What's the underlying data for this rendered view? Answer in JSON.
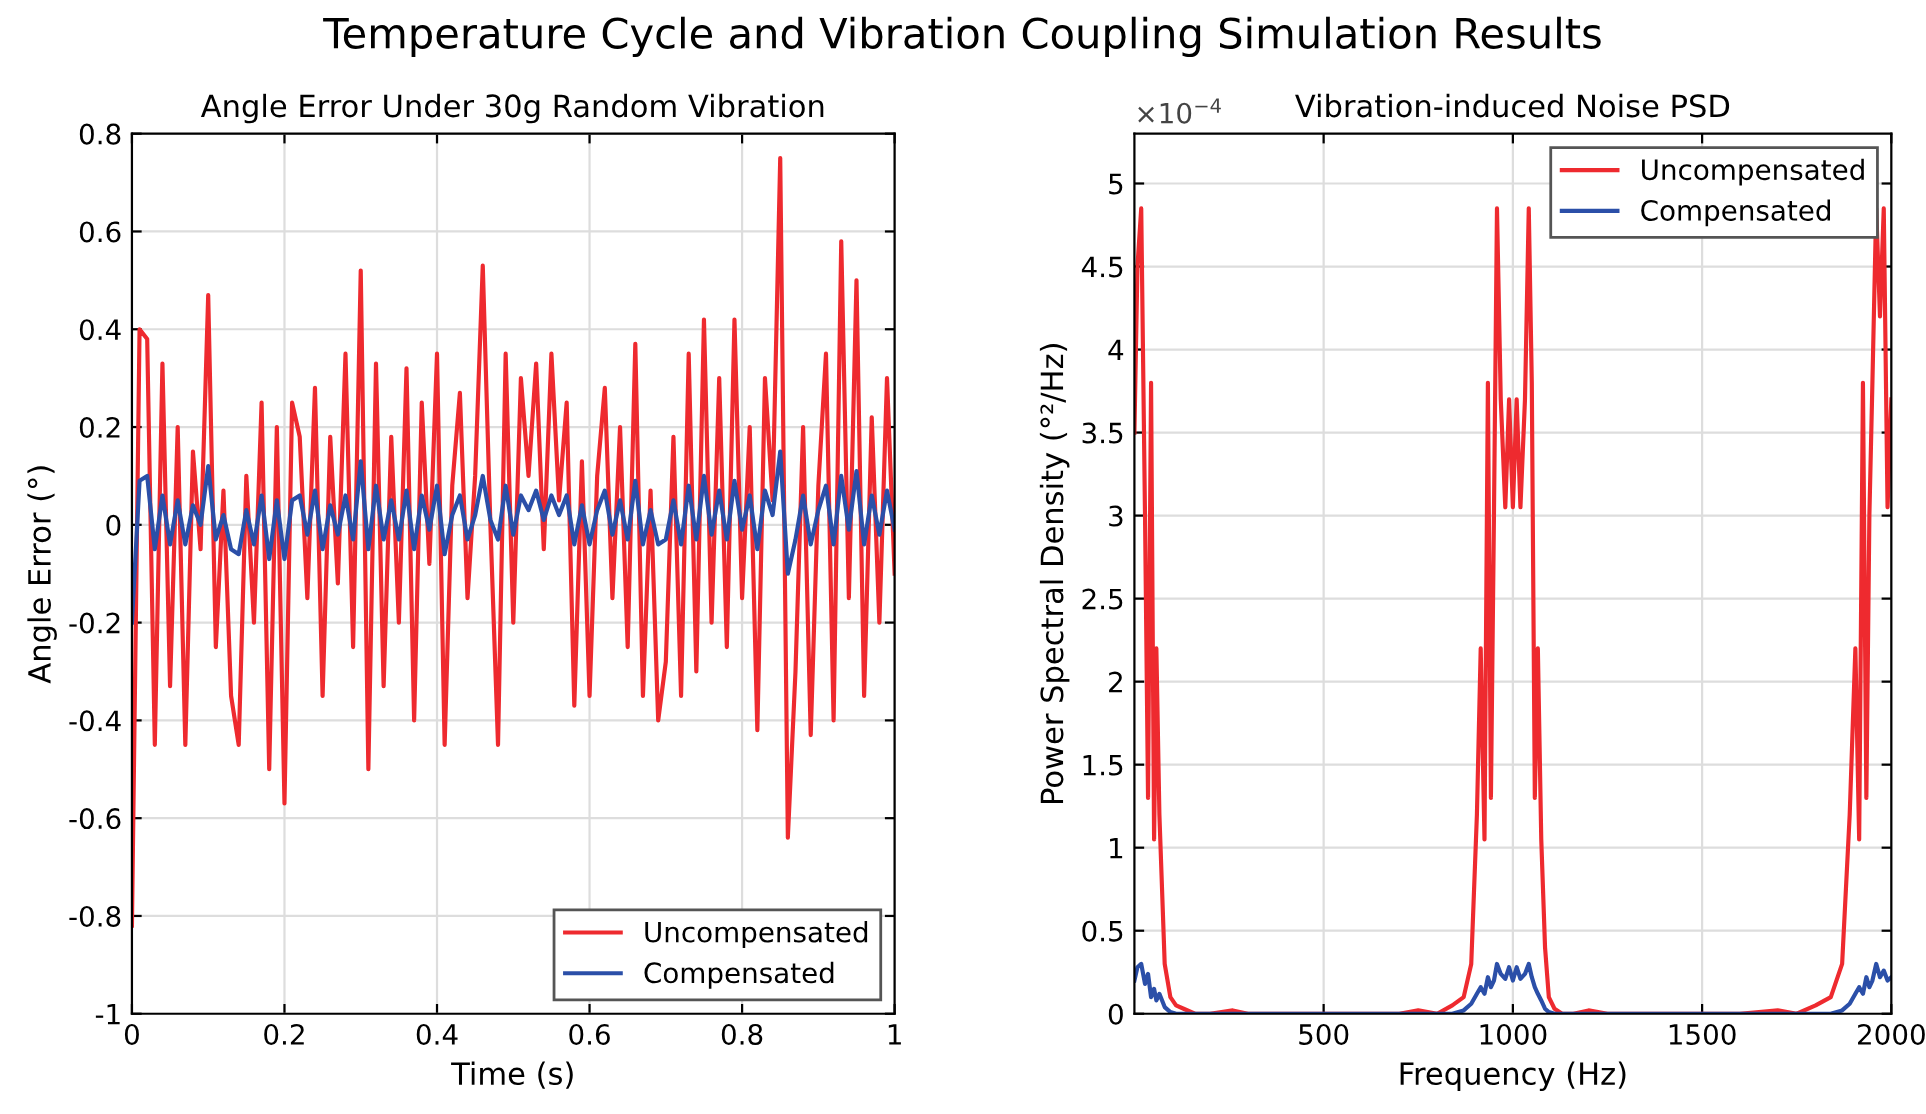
{
  "chart_data": [
    {
      "type": "line",
      "title": "Angle Error Under 30g Random Vibration",
      "annotations": [
        "Temperature Cycle and Vibration Coupling Simulation Results"
      ],
      "xlabel": "Time (s)",
      "ylabel": "Angle Error (°)",
      "xlim": [
        0,
        1
      ],
      "xticks": [
        0,
        0.2,
        0.4,
        0.6,
        0.8,
        1
      ],
      "ylim": [
        -1,
        0.8
      ],
      "yticks": [
        -1,
        -0.8,
        -0.6,
        -0.4,
        -0.2,
        0,
        0.2,
        0.4,
        0.6,
        0.8
      ],
      "grid": true,
      "legend": "bottom right",
      "x": [
        0,
        0.01,
        0.02,
        0.03,
        0.04,
        0.05,
        0.06,
        0.07,
        0.08,
        0.09,
        0.1,
        0.11,
        0.12,
        0.13,
        0.14,
        0.15,
        0.16,
        0.17,
        0.18,
        0.19,
        0.2,
        0.21,
        0.22,
        0.23,
        0.24,
        0.25,
        0.26,
        0.27,
        0.28,
        0.29,
        0.3,
        0.31,
        0.32,
        0.33,
        0.34,
        0.35,
        0.36,
        0.37,
        0.38,
        0.39,
        0.4,
        0.41,
        0.42,
        0.43,
        0.44,
        0.45,
        0.46,
        0.47,
        0.48,
        0.49,
        0.5,
        0.51,
        0.52,
        0.53,
        0.54,
        0.55,
        0.56,
        0.57,
        0.58,
        0.59,
        0.6,
        0.61,
        0.62,
        0.63,
        0.64,
        0.65,
        0.66,
        0.67,
        0.68,
        0.69,
        0.7,
        0.71,
        0.72,
        0.73,
        0.74,
        0.75,
        0.76,
        0.77,
        0.78,
        0.79,
        0.8,
        0.81,
        0.82,
        0.83,
        0.84,
        0.85,
        0.86,
        0.87,
        0.88,
        0.89,
        0.9,
        0.91,
        0.92,
        0.93,
        0.94,
        0.95,
        0.96,
        0.97,
        0.98,
        0.99,
        1
      ],
      "series": [
        {
          "name": "Uncompensated",
          "color": "#ee2a2f",
          "values": [
            -0.82,
            0.4,
            0.38,
            -0.45,
            0.33,
            -0.33,
            0.2,
            -0.45,
            0.15,
            -0.05,
            0.47,
            -0.25,
            0.07,
            -0.35,
            -0.45,
            0.1,
            -0.2,
            0.25,
            -0.5,
            0.2,
            -0.57,
            0.25,
            0.18,
            -0.15,
            0.28,
            -0.35,
            0.18,
            -0.12,
            0.35,
            -0.25,
            0.52,
            -0.5,
            0.33,
            -0.33,
            0.18,
            -0.2,
            0.32,
            -0.4,
            0.25,
            -0.08,
            0.35,
            -0.45,
            0.08,
            0.27,
            -0.15,
            0.1,
            0.53,
            0,
            -0.45,
            0.35,
            -0.2,
            0.3,
            0.1,
            0.33,
            -0.05,
            0.35,
            0.05,
            0.25,
            -0.37,
            0.13,
            -0.35,
            0.1,
            0.28,
            -0.15,
            0.2,
            -0.25,
            0.37,
            -0.35,
            0.07,
            -0.4,
            -0.28,
            0.18,
            -0.35,
            0.35,
            -0.3,
            0.42,
            -0.2,
            0.3,
            -0.25,
            0.42,
            -0.15,
            0.2,
            -0.42,
            0.3,
            0.05,
            0.75,
            -0.64,
            -0.3,
            0.2,
            -0.43,
            0.08,
            0.35,
            -0.4,
            0.58,
            -0.15,
            0.5,
            -0.35,
            0.22,
            -0.2,
            0.3,
            -0.1
          ]
        },
        {
          "name": "Compensated",
          "color": "#2b4fa8",
          "values": [
            -0.2,
            0.09,
            0.1,
            -0.05,
            0.06,
            -0.04,
            0.05,
            -0.04,
            0.04,
            0,
            0.12,
            -0.03,
            0.02,
            -0.05,
            -0.06,
            0.03,
            -0.04,
            0.06,
            -0.07,
            0.05,
            -0.07,
            0.05,
            0.06,
            -0.02,
            0.07,
            -0.05,
            0.04,
            -0.02,
            0.06,
            -0.03,
            0.13,
            -0.05,
            0.08,
            -0.03,
            0.05,
            -0.03,
            0.07,
            -0.05,
            0.06,
            -0.01,
            0.08,
            -0.06,
            0.02,
            0.06,
            -0.03,
            0.02,
            0.1,
            0.01,
            -0.03,
            0.08,
            -0.02,
            0.06,
            0.03,
            0.07,
            0.01,
            0.06,
            0.02,
            0.06,
            -0.04,
            0.04,
            -0.04,
            0.03,
            0.07,
            -0.02,
            0.05,
            -0.03,
            0.09,
            -0.04,
            0.03,
            -0.04,
            -0.03,
            0.05,
            -0.04,
            0.08,
            -0.03,
            0.1,
            -0.02,
            0.07,
            -0.03,
            0.09,
            -0.01,
            0.06,
            -0.05,
            0.07,
            0.02,
            0.15,
            -0.1,
            -0.03,
            0.06,
            -0.04,
            0.03,
            0.08,
            -0.04,
            0.1,
            -0.01,
            0.11,
            -0.04,
            0.06,
            -0.02,
            0.07,
            -0.01
          ]
        }
      ]
    },
    {
      "type": "line",
      "title": "Vibration-induced Noise PSD",
      "xlabel": "Frequency (Hz)",
      "ylabel": "Power Spectral Density (°²/Hz)",
      "annotations": [
        "×10$^{−4}$"
      ],
      "xlim": [
        0,
        2000
      ],
      "xticks": [
        500,
        1000,
        1500,
        2000
      ],
      "ylim": [
        0,
        5.3
      ],
      "yticks": [
        0,
        0.5,
        1,
        1.5,
        2,
        2.5,
        3,
        3.5,
        4,
        4.5,
        5
      ],
      "grid": true,
      "legend": "top right",
      "x": [
        0,
        8,
        18,
        28,
        36,
        44,
        52,
        58,
        66,
        80,
        95,
        110,
        130,
        160,
        200,
        260,
        300,
        400,
        500,
        600,
        700,
        750,
        800,
        840,
        870,
        890,
        905,
        915,
        925,
        934,
        942,
        950,
        958,
        968,
        980,
        990,
        1000,
        1010,
        1020,
        1032,
        1042,
        1050,
        1058,
        1066,
        1075,
        1085,
        1095,
        1110,
        1130,
        1160,
        1200,
        1250,
        1300,
        1400,
        1500,
        1600,
        1700,
        1750,
        1800,
        1840,
        1870,
        1890,
        1905,
        1915,
        1925,
        1934,
        1942,
        1950,
        1960,
        1970,
        1980,
        1990,
        2000
      ],
      "series": [
        {
          "name": "Uncompensated",
          "color": "#ee2a2f",
          "values": [
            3.5,
            4.5,
            4.85,
            3,
            1.3,
            3.8,
            1.05,
            2.2,
            1.2,
            0.3,
            0.1,
            0.05,
            0.03,
            0,
            0,
            0.02,
            0,
            0,
            0,
            0,
            0,
            0.02,
            0,
            0.05,
            0.1,
            0.3,
            1.2,
            2.2,
            1.05,
            3.8,
            1.3,
            3,
            4.85,
            3.7,
            3.05,
            3.7,
            3.05,
            3.7,
            3.05,
            3.7,
            4.85,
            3.8,
            1.3,
            2.2,
            1.05,
            0.4,
            0.1,
            0.03,
            0,
            0,
            0.02,
            0,
            0,
            0,
            0,
            0,
            0.02,
            0,
            0.05,
            0.1,
            0.3,
            1.2,
            2.2,
            1.05,
            3.8,
            1.3,
            3,
            3.8,
            4.85,
            4.2,
            4.85,
            3.05,
            3.7
          ]
        },
        {
          "name": "Compensated",
          "color": "#2b4fa8",
          "values": [
            0.2,
            0.28,
            0.3,
            0.18,
            0.24,
            0.1,
            0.15,
            0.08,
            0.12,
            0.04,
            0.01,
            0,
            0,
            0,
            0,
            0,
            0,
            0,
            0,
            0,
            0,
            0,
            0,
            0,
            0.02,
            0.06,
            0.12,
            0.16,
            0.12,
            0.22,
            0.16,
            0.2,
            0.3,
            0.24,
            0.21,
            0.28,
            0.2,
            0.28,
            0.21,
            0.24,
            0.3,
            0.22,
            0.16,
            0.12,
            0.08,
            0.03,
            0.01,
            0,
            0,
            0,
            0,
            0,
            0,
            0,
            0,
            0,
            0,
            0,
            0,
            0,
            0.02,
            0.06,
            0.12,
            0.16,
            0.12,
            0.22,
            0.16,
            0.2,
            0.3,
            0.22,
            0.26,
            0.2,
            0.22
          ]
        }
      ]
    }
  ]
}
